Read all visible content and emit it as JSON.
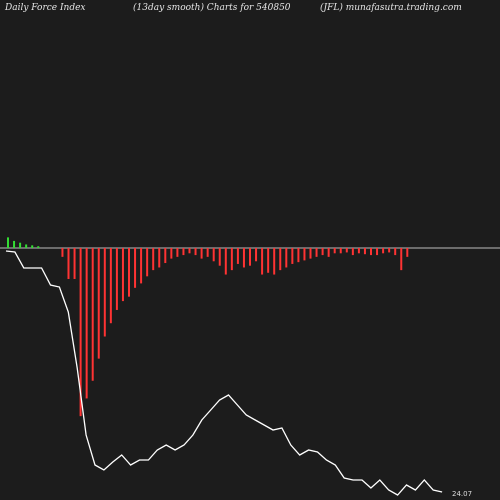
{
  "header": {
    "left": "Daily Force  Index",
    "center": "(13day smooth) Charts for 540850",
    "right": "(JFL) munafasutra.trading.com"
  },
  "colors": {
    "background": "#1c1c1c",
    "baseline": "#bbbbbb",
    "positive_bar": "#33dd33",
    "negative_bar": "#ff3333",
    "price_line": "#ffffff"
  },
  "chart_data": {
    "type": "bar",
    "title": "Daily Force Index (13day smooth)",
    "bars": [
      12,
      8,
      6,
      4,
      3,
      2,
      0,
      0,
      0,
      -10,
      -35,
      -35,
      -190,
      -170,
      -150,
      -125,
      -100,
      -85,
      -70,
      -60,
      -55,
      -45,
      -40,
      -32,
      -25,
      -22,
      -17,
      -12,
      -10,
      -8,
      -6,
      -8,
      -12,
      -10,
      -15,
      -20,
      -30,
      -25,
      -18,
      -22,
      -20,
      -15,
      -30,
      -28,
      -30,
      -25,
      -22,
      -18,
      -16,
      -14,
      -12,
      -10,
      -8,
      -10,
      -6,
      -6,
      -5,
      -8,
      -6,
      -7,
      -8,
      -8,
      -6,
      -5,
      -8,
      -25,
      -10
    ],
    "line": [
      -1,
      -2,
      -18,
      -18,
      -18,
      -35,
      -37,
      -62,
      -118,
      -185,
      -215,
      -220,
      -212,
      -205,
      -215,
      -210,
      -210,
      -200,
      -195,
      -200,
      -195,
      -185,
      -170,
      -160,
      -150,
      -145,
      -155,
      -165,
      -170,
      -175,
      -180,
      -178,
      -195,
      -205,
      -200,
      -202,
      -210,
      -215,
      -228,
      -230,
      -230,
      -238,
      -230,
      -240,
      -245,
      -235,
      -240,
      -230,
      -240,
      -242
    ],
    "line_label": "24.07"
  }
}
